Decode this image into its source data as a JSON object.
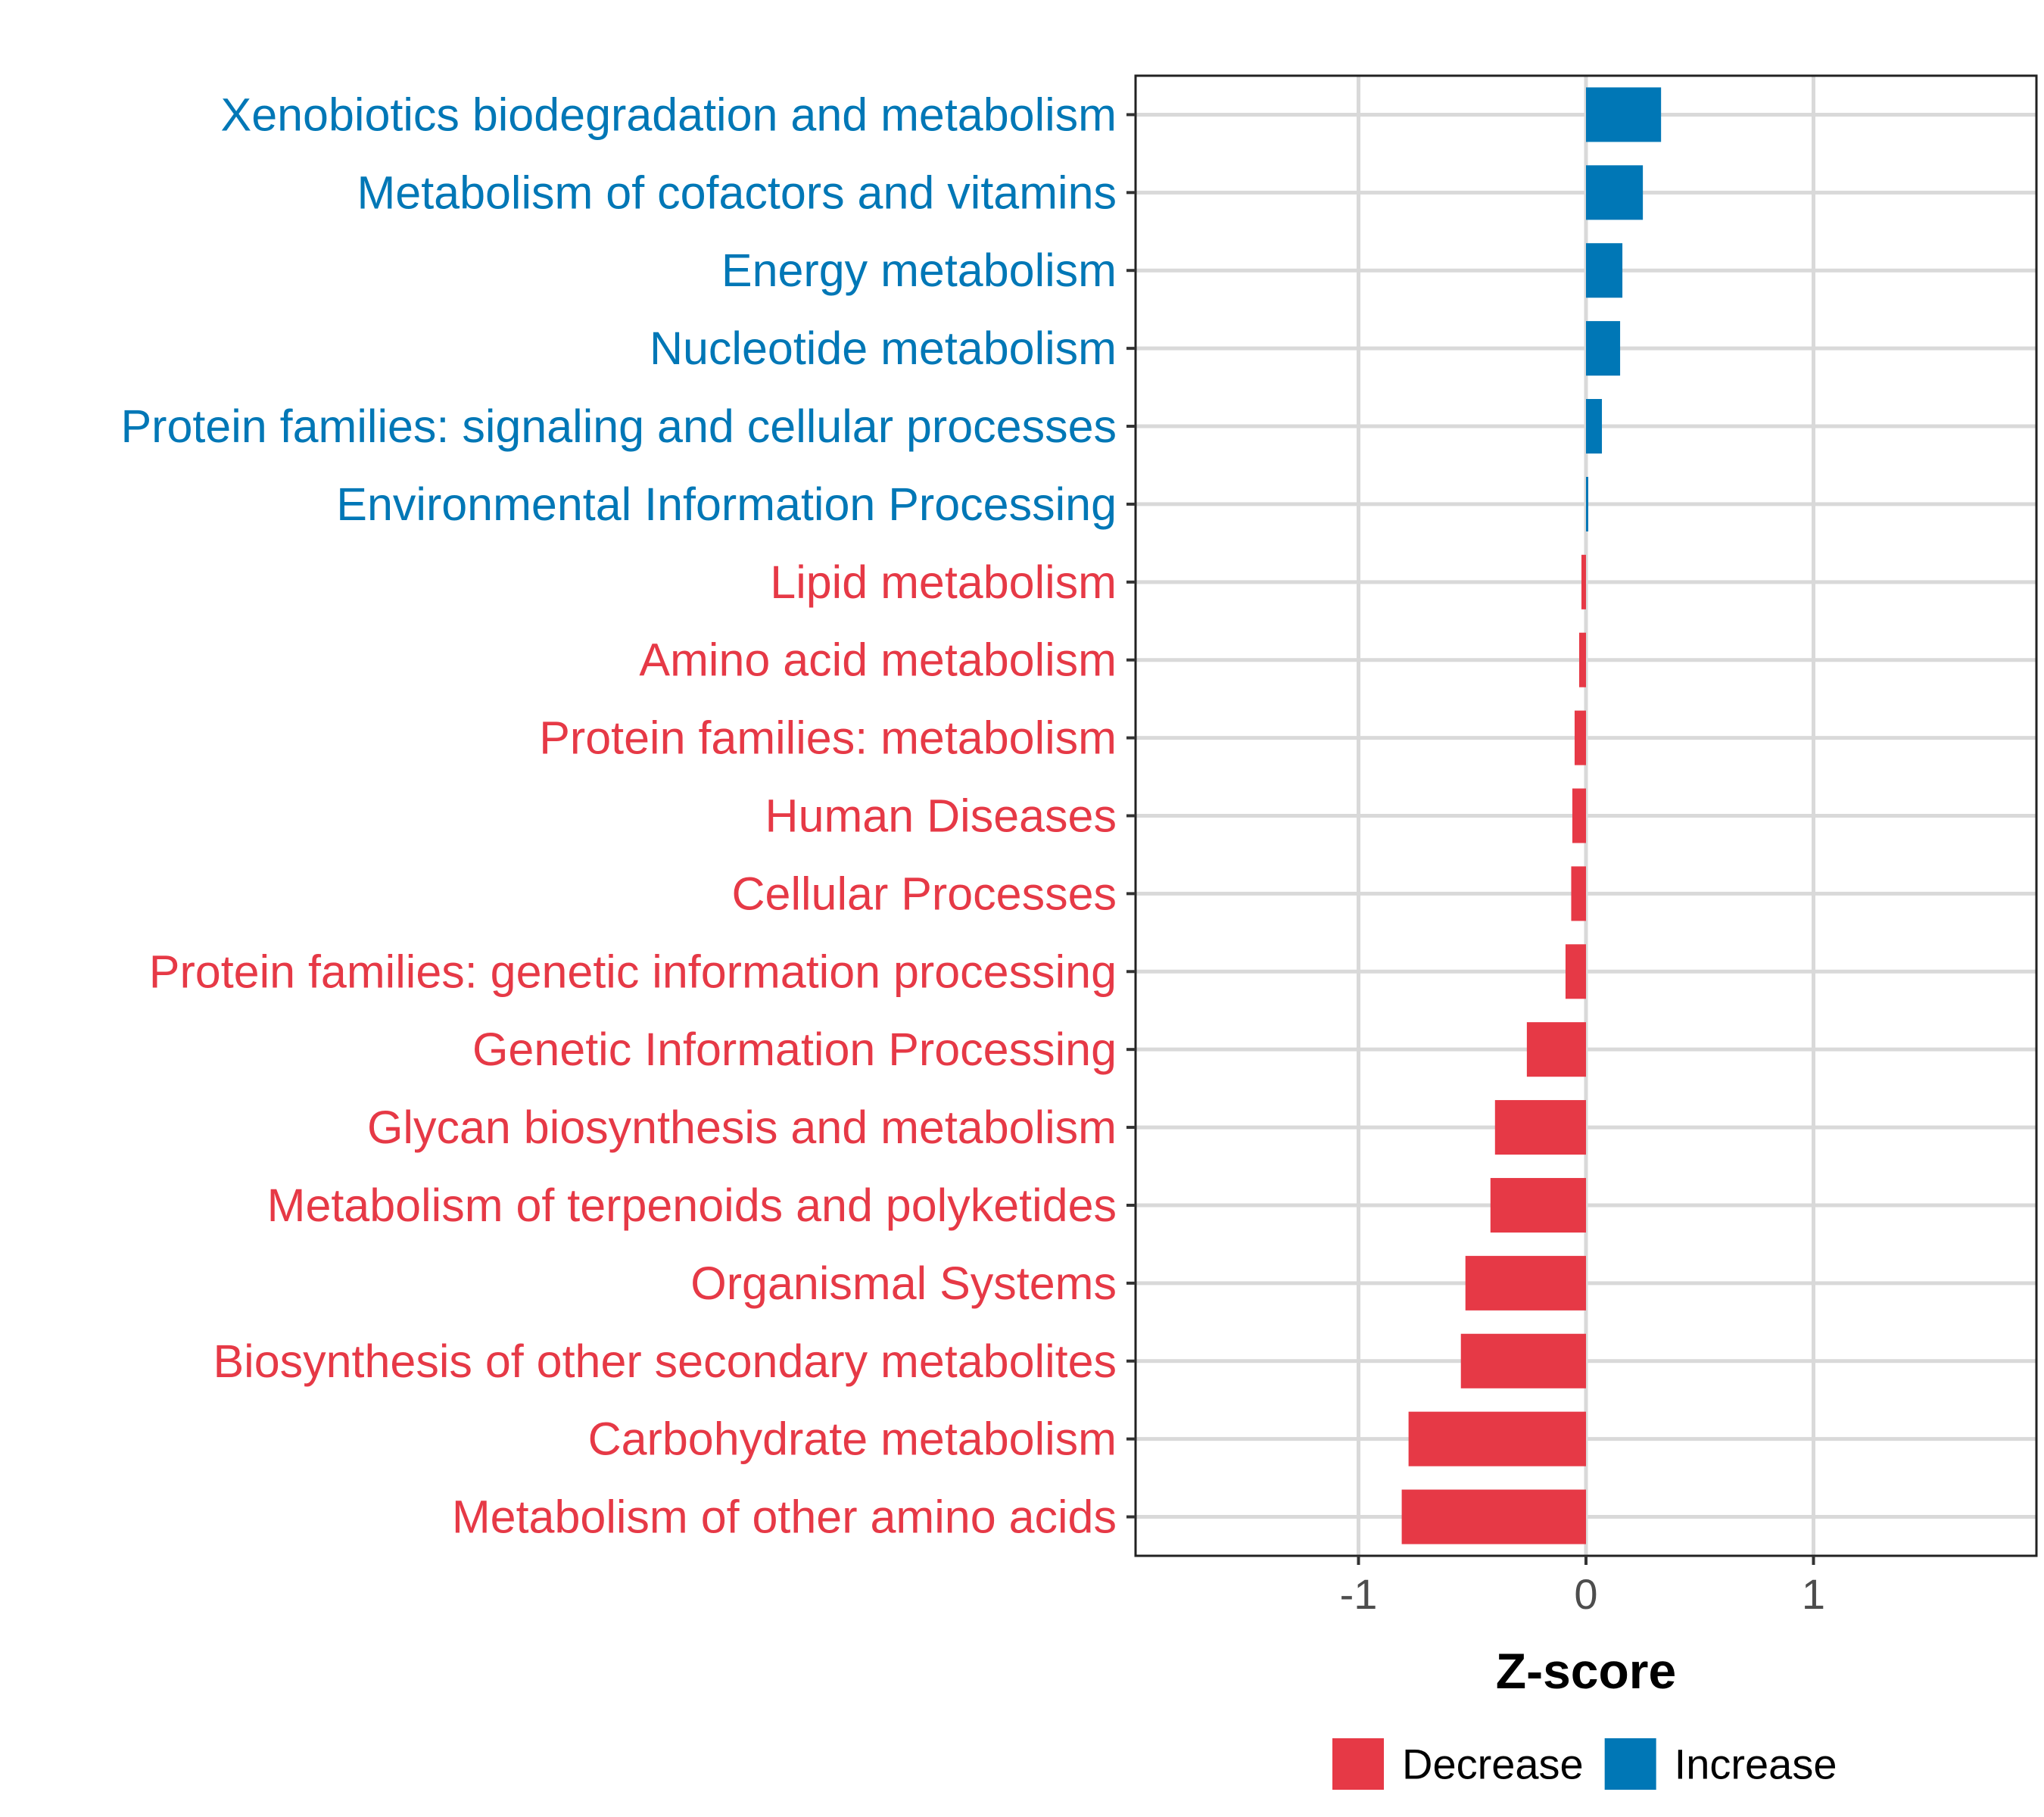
{
  "chart_data": {
    "type": "bar",
    "orientation": "horizontal",
    "xlabel": "Z-score",
    "xlim": [
      -1.98,
      1.98
    ],
    "xticks": [
      -1,
      0,
      1
    ],
    "xtick_labels": [
      "-1",
      "0",
      "1"
    ],
    "grid": true,
    "legend_position": "bottom",
    "colors": {
      "Decrease": "#E63946",
      "Increase": "#0077B6"
    },
    "legend": [
      {
        "label": "Decrease",
        "color": "#E63946"
      },
      {
        "label": "Increase",
        "color": "#0077B6"
      }
    ],
    "categories": [
      "Xenobiotics biodegradation and metabolism",
      "Metabolism of cofactors and vitamins",
      "Energy metabolism",
      "Nucleotide metabolism",
      "Protein families: signaling and cellular processes",
      "Environmental Information Processing",
      "Lipid metabolism",
      "Amino acid metabolism",
      "Protein families: metabolism",
      "Human Diseases",
      "Cellular Processes",
      "Protein families: genetic information processing",
      "Genetic Information Processing",
      "Glycan biosynthesis and metabolism",
      "Metabolism of terpenoids and polyketides",
      "Organismal Systems",
      "Biosynthesis of other secondary metabolites",
      "Carbohydrate metabolism",
      "Metabolism of other amino acids"
    ],
    "values": [
      0.33,
      0.25,
      0.16,
      0.15,
      0.07,
      0.01,
      -0.02,
      -0.03,
      -0.05,
      -0.06,
      -0.065,
      -0.09,
      -0.26,
      -0.4,
      -0.42,
      -0.53,
      -0.55,
      -0.78,
      -0.81
    ],
    "groups": [
      "Increase",
      "Increase",
      "Increase",
      "Increase",
      "Increase",
      "Increase",
      "Decrease",
      "Decrease",
      "Decrease",
      "Decrease",
      "Decrease",
      "Decrease",
      "Decrease",
      "Decrease",
      "Decrease",
      "Decrease",
      "Decrease",
      "Decrease",
      "Decrease"
    ]
  }
}
